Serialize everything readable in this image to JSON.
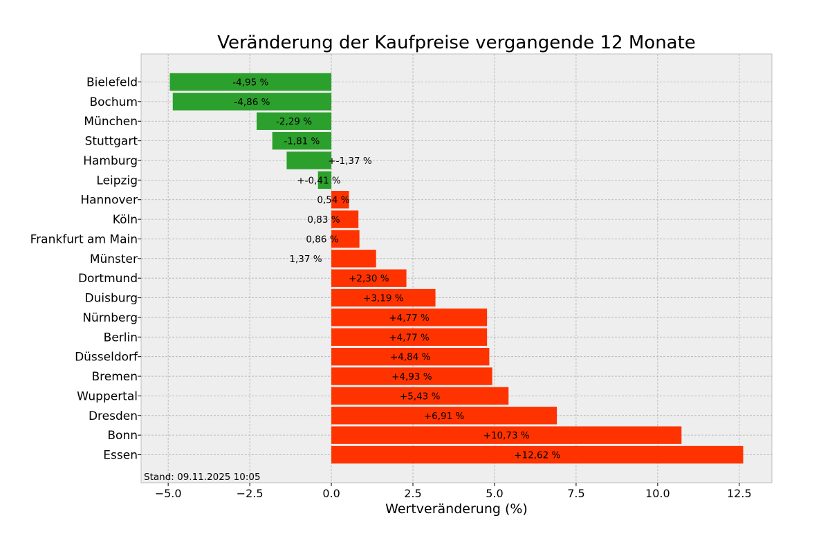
{
  "chart_data": {
    "type": "bar",
    "orientation": "horizontal",
    "title": "Veränderung der Kaufpreise vergangende 12 Monate",
    "xlabel": "Wertveränderung (%)",
    "ylabel": "",
    "xlim": [
      -5.83,
      13.5
    ],
    "xticks": [
      -5.0,
      -2.5,
      0.0,
      2.5,
      5.0,
      7.5,
      10.0,
      12.5
    ],
    "xtick_labels": [
      "−5.0",
      "−2.5",
      "0.0",
      "2.5",
      "5.0",
      "7.5",
      "10.0",
      "12.5"
    ],
    "grid": true,
    "annotation": "Stand: 09.11.2025 10:05",
    "colors": {
      "negative": "#2ca02c",
      "positive": "#ff3300",
      "background": "#eeeeee"
    },
    "categories": [
      "Bielefeld",
      "Bochum",
      "München",
      "Stuttgart",
      "Hamburg",
      "Leipzig",
      "Hannover",
      "Köln",
      "Frankfurt am Main",
      "Münster",
      "Dortmund",
      "Duisburg",
      "Nürnberg",
      "Berlin",
      "Düsseldorf",
      "Bremen",
      "Wuppertal",
      "Dresden",
      "Bonn",
      "Essen"
    ],
    "values": [
      -4.95,
      -4.86,
      -2.29,
      -1.81,
      -1.37,
      -0.41,
      0.54,
      0.83,
      0.86,
      1.37,
      2.3,
      3.19,
      4.77,
      4.77,
      4.84,
      4.93,
      5.43,
      6.91,
      10.73,
      12.62
    ],
    "data_labels": [
      "-4,95 %",
      "-4,86 %",
      "-2,29 %",
      "-1,81 %",
      "+-1,37 %",
      "+-0,41 %",
      "0,54 %",
      "0,83 %",
      "0,86 %",
      "1,37 %",
      "+2,30 %",
      "+3,19 %",
      "+4,77 %",
      "+4,77 %",
      "+4,84 %",
      "+4,93 %",
      "+5,43 %",
      "+6,91 %",
      "+10,73 %",
      "+12,62 %"
    ]
  }
}
